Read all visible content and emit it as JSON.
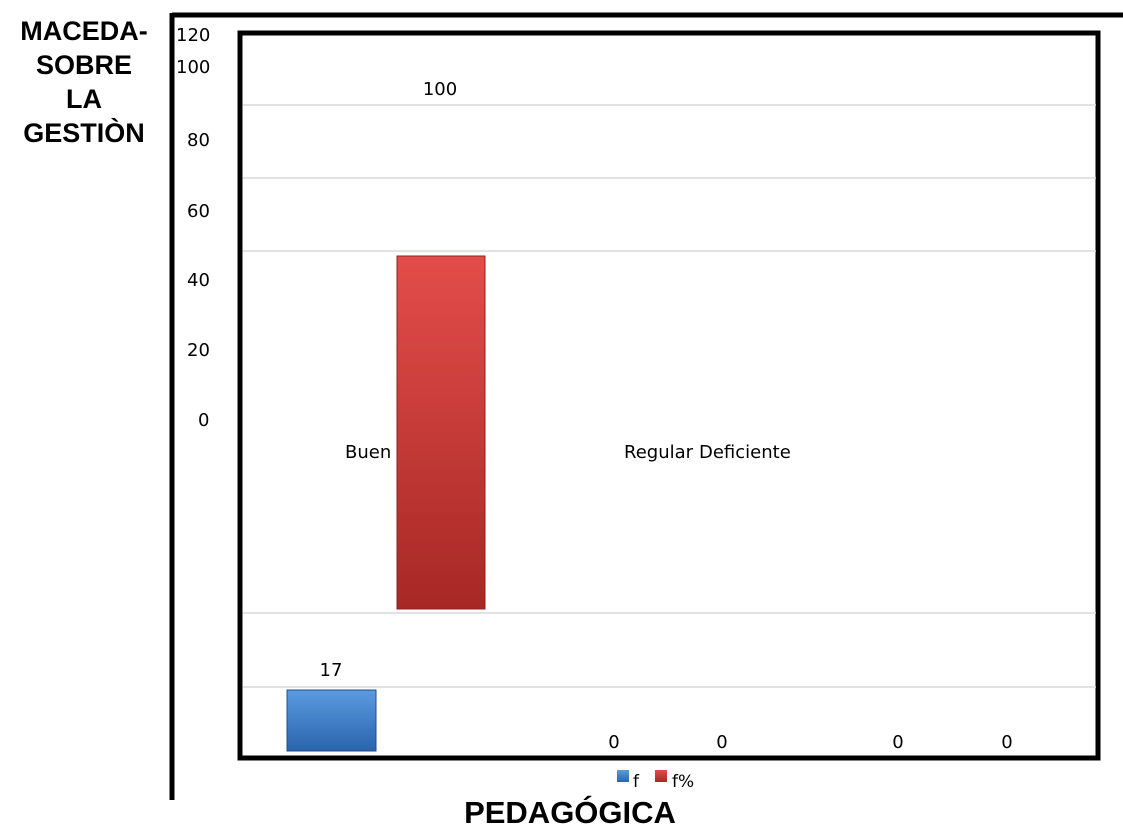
{
  "title_left": [
    "MACEDA-",
    "SOBRE",
    "LA",
    "GESTIÒN"
  ],
  "title_bottom": "PEDAGÓGICA",
  "chart_data": {
    "type": "bar",
    "categories": [
      "Buen",
      "Regular",
      "Deficiente"
    ],
    "series": [
      {
        "name": "f",
        "values": [
          17,
          0,
          0
        ],
        "color": "#2e6fbe"
      },
      {
        "name": "f%",
        "values": [
          100,
          0,
          0
        ],
        "color": "#c0302e"
      }
    ],
    "y_ticks": [
      "120",
      "100",
      "80",
      "60",
      "40",
      "20",
      "0"
    ],
    "ylim": [
      0,
      120
    ],
    "grid": true,
    "legend_position": "bottom"
  }
}
